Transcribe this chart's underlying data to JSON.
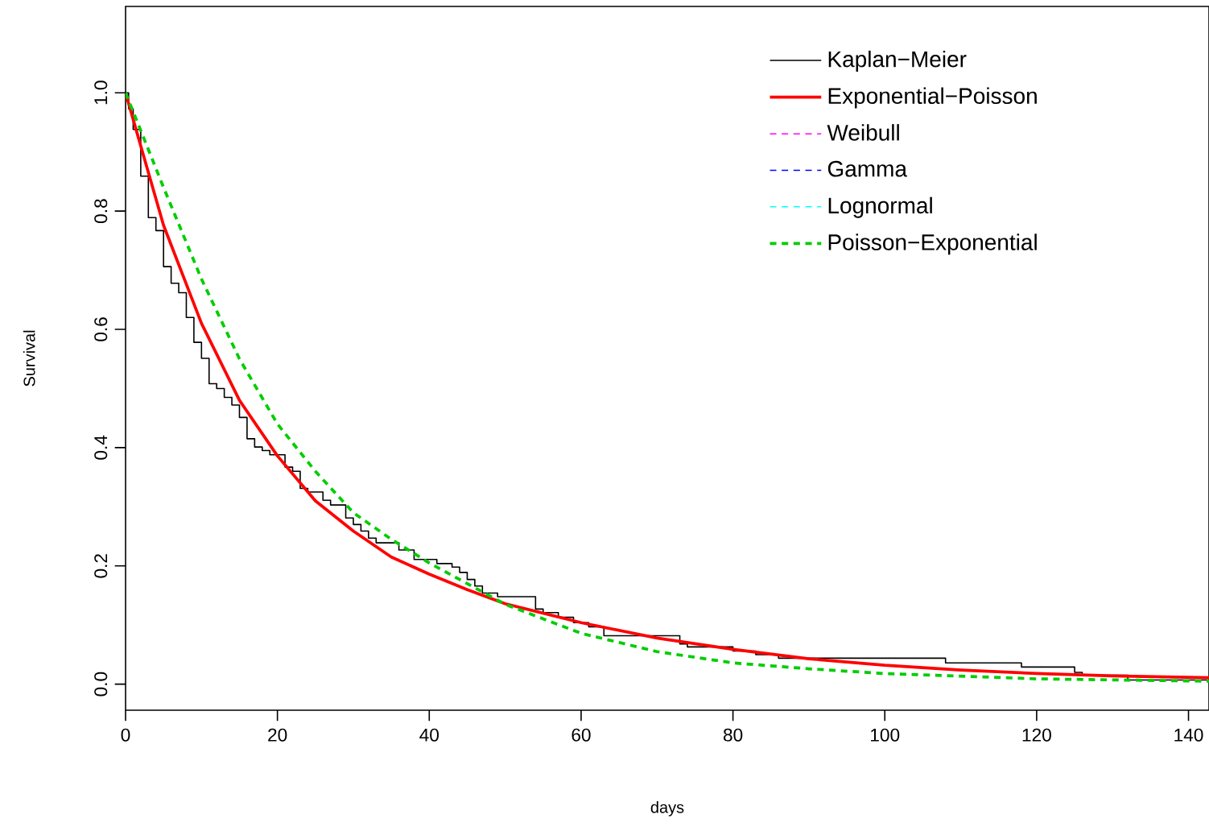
{
  "chart_data": {
    "type": "line",
    "xlabel": "days",
    "ylabel": "Survival",
    "xlim": [
      0,
      142.7
    ],
    "ylim": [
      -0.044,
      1.146
    ],
    "xticks": [
      0,
      20,
      40,
      60,
      80,
      100,
      120,
      140
    ],
    "yticks": [
      {
        "value": 0,
        "label": "0.0"
      },
      0.2,
      0.4,
      0.6,
      0.8,
      {
        "value": 1,
        "label": "1.0"
      }
    ],
    "grid": false,
    "legend": "top right",
    "series": [
      {
        "name": "Kaplan−Meier",
        "type": "step",
        "color": "#000000",
        "line_style": "solid",
        "x": [
          0,
          0.4,
          1,
          2,
          3,
          4,
          5,
          6,
          7,
          8,
          9,
          10,
          11,
          12,
          13,
          14,
          15,
          16,
          17,
          18,
          19,
          21,
          22,
          23,
          24,
          26,
          27,
          29,
          30,
          31,
          32,
          33,
          36,
          38,
          41,
          43,
          44,
          45,
          46,
          47,
          49,
          54,
          55,
          57,
          59,
          61,
          63,
          73,
          74,
          80,
          83,
          86,
          108,
          118,
          125,
          126,
          132,
          142.7
        ],
        "values": [
          1.0,
          0.973,
          0.938,
          0.859,
          0.789,
          0.767,
          0.706,
          0.678,
          0.662,
          0.62,
          0.578,
          0.551,
          0.508,
          0.5,
          0.485,
          0.472,
          0.451,
          0.415,
          0.401,
          0.395,
          0.388,
          0.367,
          0.36,
          0.331,
          0.325,
          0.311,
          0.303,
          0.281,
          0.27,
          0.259,
          0.247,
          0.239,
          0.227,
          0.211,
          0.204,
          0.198,
          0.189,
          0.177,
          0.166,
          0.154,
          0.148,
          0.127,
          0.121,
          0.113,
          0.104,
          0.097,
          0.082,
          0.068,
          0.063,
          0.056,
          0.05,
          0.044,
          0.036,
          0.029,
          0.02,
          0.015,
          0.007,
          0.007
        ]
      },
      {
        "name": "Exponential−Poisson",
        "color": "#ff0000",
        "line_style": "solid",
        "x": [
          0,
          2,
          5,
          10,
          15,
          20,
          25,
          30,
          35,
          40,
          45,
          50,
          60,
          70,
          80,
          90,
          100,
          110,
          120,
          130,
          142.7
        ],
        "values": [
          1.0,
          0.91,
          0.776,
          0.61,
          0.48,
          0.386,
          0.31,
          0.259,
          0.215,
          0.186,
          0.16,
          0.136,
          0.104,
          0.078,
          0.059,
          0.043,
          0.032,
          0.024,
          0.018,
          0.014,
          0.011
        ]
      },
      {
        "name": "Weibull",
        "color": "#ff00ff",
        "line_style": "dashed"
      },
      {
        "name": "Gamma",
        "color": "#0000ff",
        "line_style": "dashed"
      },
      {
        "name": "Lognormal",
        "color": "#00ffff",
        "line_style": "dashed"
      },
      {
        "name": "Poisson−Exponential",
        "color": "#00cd00",
        "line_style": "dashed",
        "x": [
          0,
          5,
          10,
          15,
          20,
          25,
          30,
          35,
          40,
          50,
          60,
          70,
          80,
          90,
          100,
          120,
          142.7
        ],
        "values": [
          1.0,
          0.84,
          0.685,
          0.55,
          0.44,
          0.36,
          0.29,
          0.245,
          0.205,
          0.135,
          0.086,
          0.055,
          0.036,
          0.026,
          0.018,
          0.009,
          0.005
        ]
      }
    ]
  }
}
